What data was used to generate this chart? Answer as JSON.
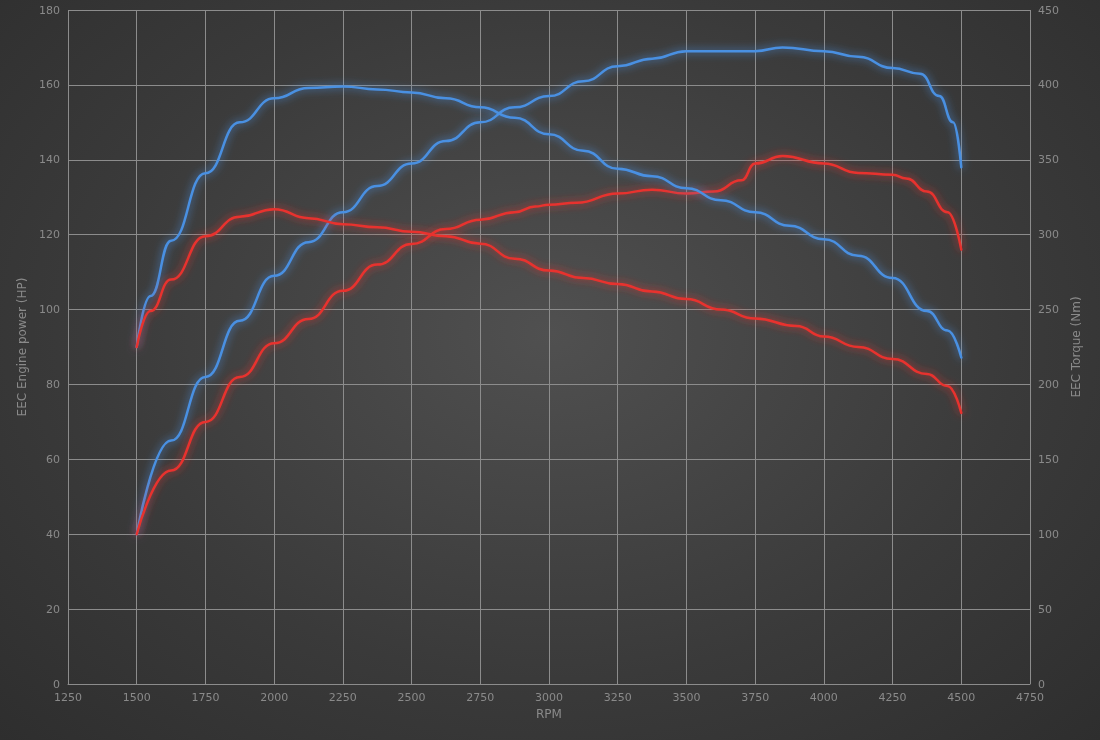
{
  "chart_data": {
    "type": "line",
    "xlabel": "RPM",
    "ylabel": "EEC Engine power (HP)",
    "y2label": "EEC Torque (Nm)",
    "xlim": [
      1250,
      4750
    ],
    "xticks": [
      1250,
      1500,
      1750,
      2000,
      2250,
      2500,
      2750,
      3000,
      3250,
      3500,
      3750,
      4000,
      4250,
      4500,
      4750
    ],
    "ylim": [
      0,
      180
    ],
    "yticks": [
      0,
      20,
      40,
      60,
      80,
      100,
      120,
      140,
      160,
      180
    ],
    "y2lim": [
      0,
      450
    ],
    "y2ticks": [
      0,
      50,
      100,
      150,
      200,
      250,
      300,
      350,
      400,
      450
    ],
    "grid": true,
    "series": [
      {
        "color": "#4a90e2",
        "axis": "y",
        "x": [
          1500,
          1625,
          1750,
          1875,
          2000,
          2125,
          2250,
          2375,
          2500,
          2625,
          2750,
          2875,
          3000,
          3125,
          3250,
          3375,
          3500,
          3625,
          3750,
          3850,
          4000,
          4125,
          4250,
          4350,
          4420,
          4470,
          4500
        ],
        "values": [
          40,
          65,
          82,
          97,
          109,
          118,
          126,
          133,
          139,
          145,
          150,
          154,
          157,
          161,
          165,
          167,
          169,
          169,
          169,
          170,
          169,
          167.5,
          164.5,
          163,
          157,
          150,
          138
        ]
      },
      {
        "color": "#e8322e",
        "axis": "y",
        "x": [
          1500,
          1625,
          1750,
          1875,
          2000,
          2125,
          2250,
          2375,
          2500,
          2625,
          2750,
          2875,
          2950,
          3000,
          3100,
          3250,
          3375,
          3500,
          3600,
          3700,
          3750,
          3850,
          4000,
          4125,
          4250,
          4300,
          4375,
          4450,
          4500
        ],
        "values": [
          40,
          57,
          70,
          82,
          91,
          97.5,
          105,
          112,
          117.5,
          121.5,
          124,
          126,
          127.5,
          128,
          128.5,
          131,
          132,
          131,
          131.5,
          134.5,
          139,
          141,
          139,
          136.5,
          136,
          135,
          131.5,
          126,
          116
        ]
      },
      {
        "color": "#4a90e2",
        "axis": "y2",
        "x": [
          1500,
          1550,
          1625,
          1750,
          1875,
          2000,
          2125,
          2250,
          2375,
          2500,
          2625,
          2750,
          2875,
          3000,
          3125,
          3250,
          3375,
          3500,
          3625,
          3750,
          3875,
          4000,
          4125,
          4250,
          4375,
          4450,
          4500
        ],
        "values": [
          225,
          259,
          296,
          341,
          375,
          391,
          398,
          399,
          397,
          395,
          391,
          385,
          378,
          367,
          356,
          344,
          339,
          331,
          323,
          315,
          306,
          297,
          286,
          271,
          249,
          236,
          218
        ]
      },
      {
        "color": "#e8322e",
        "axis": "y2",
        "x": [
          1500,
          1550,
          1625,
          1750,
          1875,
          2000,
          2125,
          2250,
          2375,
          2500,
          2625,
          2750,
          2875,
          3000,
          3125,
          3250,
          3375,
          3500,
          3625,
          3750,
          3900,
          4000,
          4125,
          4250,
          4375,
          4450,
          4500
        ],
        "values": [
          225,
          249,
          270,
          299,
          312,
          317,
          311,
          307,
          305,
          302,
          299,
          294,
          284,
          276,
          271,
          267,
          262,
          257,
          250,
          244,
          239,
          232,
          225,
          217,
          207,
          199,
          181
        ]
      }
    ]
  }
}
